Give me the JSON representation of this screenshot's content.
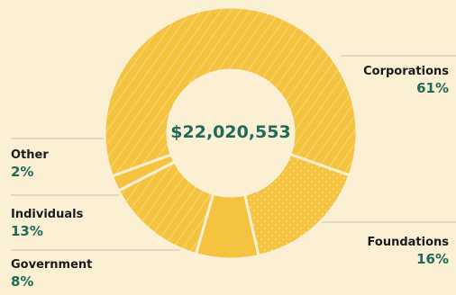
{
  "chart_data": {
    "type": "pie",
    "style": "donut",
    "center_label": "$22,020,553",
    "colors": {
      "slice": "#f4c33f",
      "gap": "#fbefd4",
      "background": "#fbefd4",
      "percent_text": "#1f6b5b",
      "name_text": "#1b1b1b",
      "leader_line": "#c9c2b0"
    },
    "slices": [
      {
        "label": "Corporations",
        "value": 61,
        "display": "61%",
        "texture": "diagonal-stripes"
      },
      {
        "label": "Foundations",
        "value": 16,
        "display": "16%",
        "texture": "dots"
      },
      {
        "label": "Government",
        "value": 8,
        "display": "8%",
        "texture": "plain"
      },
      {
        "label": "Individuals",
        "value": 13,
        "display": "13%",
        "texture": "diagonal-stripes"
      },
      {
        "label": "Other",
        "value": 2,
        "display": "2%",
        "texture": "plain"
      }
    ]
  }
}
